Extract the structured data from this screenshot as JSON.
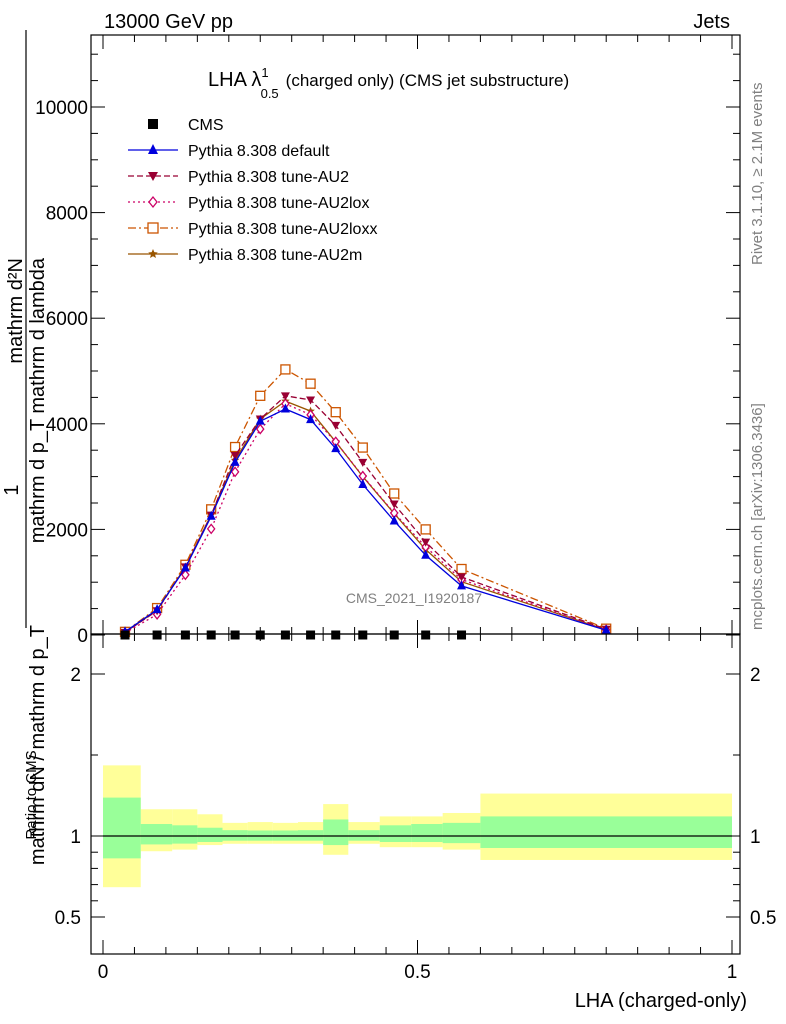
{
  "header": {
    "left": "13000 GeV pp",
    "right": "Jets"
  },
  "side_text": {
    "rivet": "Rivet 3.1.10, ≥ 2.1M events",
    "mcplots": "mcplots.cern.ch [arXiv:1306.3436]"
  },
  "chart_data": [
    {
      "type": "line",
      "title": "LHA λ¹₀.₅ (charged only) (CMS jet substructure)",
      "title_parts": {
        "main": "LHA λ",
        "sup": "1",
        "sub": "0.5",
        "rest": "(charged only) (CMS jet substructure)"
      },
      "watermark": "CMS_2021_I1920187",
      "ylabel_top": "mathrm d²N",
      "ylabel_mid": "mathrm d p_T mathrm d lambda",
      "ylabel_one": "1",
      "ylabel_bottom": "mathrm dN / mathrm d p_T",
      "xlim": [
        0,
        1
      ],
      "ylim": [
        0,
        11300
      ],
      "y_ticks": [
        0,
        2000,
        4000,
        6000,
        8000,
        10000
      ],
      "y_tick_labels": [
        "0",
        "2000",
        "4000",
        "6000",
        "8000",
        "10000"
      ],
      "x": [
        0.035,
        0.086,
        0.131,
        0.172,
        0.21,
        0.25,
        0.29,
        0.33,
        0.37,
        0.413,
        0.463,
        0.513,
        0.57,
        0.8
      ],
      "series": [
        {
          "name": "CMS",
          "color": "#000000",
          "marker": "square",
          "dash": "none",
          "values": [
            0,
            0,
            0,
            0,
            0,
            0,
            0,
            0,
            0,
            0,
            0,
            0,
            0,
            null
          ]
        },
        {
          "name": "Pythia 8.308 default",
          "color": "#0000dd",
          "marker": "triangle-up",
          "dash": "solid",
          "values": [
            60,
            480,
            1270,
            2250,
            3270,
            4050,
            4280,
            4080,
            3530,
            2850,
            2160,
            1510,
            930,
            90
          ]
        },
        {
          "name": "Pythia 8.308 tune-AU2",
          "color": "#990033",
          "marker": "triangle-down",
          "dash": "6,3",
          "values": [
            50,
            460,
            1290,
            2270,
            3400,
            4090,
            4530,
            4450,
            3970,
            3270,
            2480,
            1760,
            1100,
            110
          ]
        },
        {
          "name": "Pythia 8.308 tune-AU2lox",
          "color": "#cc0066",
          "marker": "diamond-open",
          "dash": "2,3",
          "values": [
            40,
            390,
            1140,
            2010,
            3090,
            3900,
            4380,
            4170,
            3660,
            3010,
            2310,
            1670,
            1050,
            100
          ]
        },
        {
          "name": "Pythia 8.308 tune-AU2loxx",
          "color": "#cc5500",
          "marker": "square-open",
          "dash": "8,3,2,3",
          "values": [
            60,
            510,
            1330,
            2380,
            3560,
            4530,
            5030,
            4760,
            4220,
            3550,
            2680,
            2000,
            1250,
            120
          ]
        },
        {
          "name": "Pythia 8.308 tune-AU2m",
          "color": "#995500",
          "marker": "star",
          "dash": "solid",
          "values": [
            50,
            470,
            1290,
            2280,
            3310,
            4090,
            4430,
            4240,
            3660,
            3000,
            2300,
            1620,
            1010,
            100
          ]
        }
      ]
    },
    {
      "type": "area",
      "ylabel": "Ratio to CMS",
      "xlabel": "LHA (charged-only)",
      "xlim": [
        0,
        1
      ],
      "ylim": [
        0.35,
        2.25
      ],
      "x_ticks": [
        0,
        0.5,
        1
      ],
      "x_tick_labels": [
        "0",
        "0.5",
        "1"
      ],
      "y_ticks": [
        0.5,
        1,
        2
      ],
      "y_tick_labels": [
        "0.5",
        "1",
        "2"
      ],
      "reference": 1,
      "bins": [
        {
          "lo": 0.0,
          "hi": 0.06,
          "inner": [
            0.862,
            1.237
          ],
          "outer": [
            0.684,
            1.436
          ]
        },
        {
          "lo": 0.06,
          "hi": 0.11,
          "inner": [
            0.948,
            1.074
          ],
          "outer": [
            0.906,
            1.165
          ]
        },
        {
          "lo": 0.11,
          "hi": 0.15,
          "inner": [
            0.953,
            1.066
          ],
          "outer": [
            0.916,
            1.165
          ]
        },
        {
          "lo": 0.15,
          "hi": 0.19,
          "inner": [
            0.963,
            1.051
          ],
          "outer": [
            0.944,
            1.134
          ]
        },
        {
          "lo": 0.19,
          "hi": 0.23,
          "inner": [
            0.971,
            1.036
          ],
          "outer": [
            0.952,
            1.081
          ]
        },
        {
          "lo": 0.23,
          "hi": 0.27,
          "inner": [
            0.971,
            1.034
          ],
          "outer": [
            0.952,
            1.086
          ]
        },
        {
          "lo": 0.27,
          "hi": 0.31,
          "inner": [
            0.971,
            1.034
          ],
          "outer": [
            0.952,
            1.081
          ]
        },
        {
          "lo": 0.31,
          "hi": 0.35,
          "inner": [
            0.971,
            1.036
          ],
          "outer": [
            0.952,
            1.086
          ]
        },
        {
          "lo": 0.35,
          "hi": 0.39,
          "inner": [
            0.944,
            1.102
          ],
          "outer": [
            0.884,
            1.197
          ]
        },
        {
          "lo": 0.39,
          "hi": 0.44,
          "inner": [
            0.971,
            1.036
          ],
          "outer": [
            0.952,
            1.086
          ]
        },
        {
          "lo": 0.44,
          "hi": 0.49,
          "inner": [
            0.963,
            1.066
          ],
          "outer": [
            0.931,
            1.121
          ]
        },
        {
          "lo": 0.49,
          "hi": 0.54,
          "inner": [
            0.963,
            1.074
          ],
          "outer": [
            0.931,
            1.121
          ]
        },
        {
          "lo": 0.54,
          "hi": 0.6,
          "inner": [
            0.956,
            1.081
          ],
          "outer": [
            0.916,
            1.142
          ]
        },
        {
          "lo": 0.6,
          "hi": 1.0,
          "inner": [
            0.926,
            1.121
          ],
          "outer": [
            0.852,
            1.262
          ]
        }
      ]
    }
  ]
}
